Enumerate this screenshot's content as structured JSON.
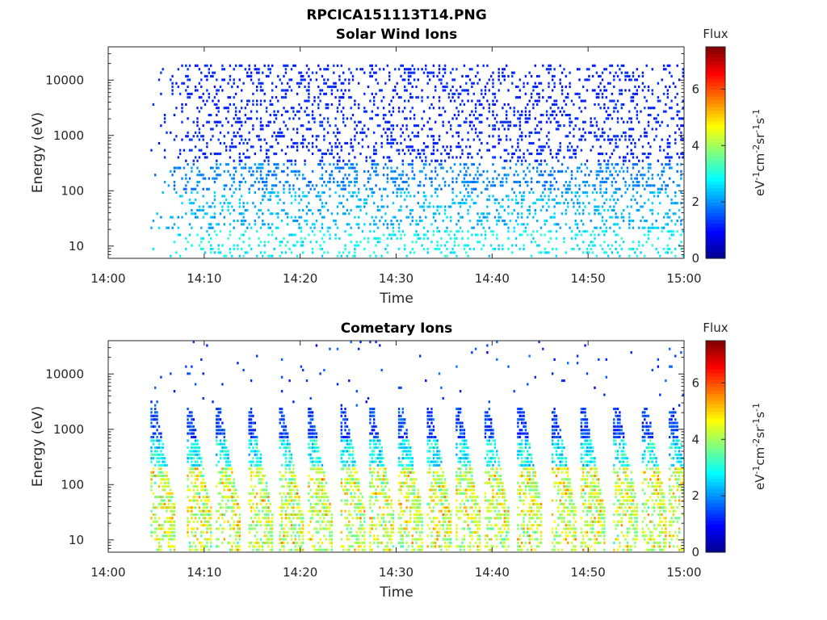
{
  "figure_title": "RPCICA151113T14.PNG",
  "colormap": [
    "#00008f",
    "#0000ff",
    "#0080ff",
    "#00ffff",
    "#80ff80",
    "#ffff00",
    "#ff8000",
    "#ff0000",
    "#800000"
  ],
  "chart_data": [
    {
      "type": "heatmap",
      "title": "Solar Wind Ions",
      "xlabel": "Time",
      "ylabel": "Energy (eV)",
      "x_ticks": [
        "14:00",
        "14:10",
        "14:20",
        "14:30",
        "14:40",
        "14:50",
        "15:00"
      ],
      "x_range_minutes": [
        0,
        60
      ],
      "y_ticks": [
        10,
        100,
        1000,
        10000
      ],
      "y_tick_labels": [
        "10",
        "100",
        "1000",
        "10000"
      ],
      "ylim": [
        6,
        40000
      ],
      "y_scale": "log",
      "colorbar": {
        "title": "Flux",
        "label": "eV-1cm-2sr-1s-1",
        "ticks": [
          0,
          2,
          4,
          6
        ],
        "range": [
          0,
          7.5
        ]
      },
      "description": "Sparse blue/cyan ion counts from ~14:04 to 15:00; flux ~1.2 at 1000-20000 eV, ~2.2 near 100 eV, ~2.7 near 10 eV.",
      "bands": [
        {
          "e_min": 300,
          "e_max": 20000,
          "flux": 1.2,
          "density": 0.22
        },
        {
          "e_min": 100,
          "e_max": 300,
          "flux": 1.9,
          "density": 0.3
        },
        {
          "e_min": 20,
          "e_max": 100,
          "flux": 2.3,
          "density": 0.25
        },
        {
          "e_min": 6,
          "e_max": 20,
          "flux": 2.8,
          "density": 0.2
        }
      ],
      "start_minute": 4
    },
    {
      "type": "heatmap",
      "title": "Cometary Ions",
      "xlabel": "Time",
      "ylabel": "Energy (eV)",
      "x_ticks": [
        "14:00",
        "14:10",
        "14:20",
        "14:30",
        "14:40",
        "14:50",
        "15:00"
      ],
      "x_range_minutes": [
        0,
        60
      ],
      "y_ticks": [
        10,
        100,
        1000,
        10000
      ],
      "y_tick_labels": [
        "10",
        "100",
        "1000",
        "10000"
      ],
      "ylim": [
        6,
        40000
      ],
      "y_scale": "log",
      "colorbar": {
        "title": "Flux",
        "label": "eV-1cm-2sr-1s-1",
        "ticks": [
          0,
          2,
          4,
          6
        ],
        "range": [
          0,
          7.5
        ]
      },
      "description": "Periodic dispersed ion bursts roughly every 3 minutes from ~14:04 to 15:00, strongest (flux ~4-5) at 20-200 eV.",
      "burst_minutes": [
        4.8,
        8.5,
        11.5,
        14.8,
        18,
        21,
        24.5,
        27.5,
        30.5,
        33.5,
        36.5,
        39.5,
        43,
        46.5,
        49.5,
        53,
        56,
        58.8
      ],
      "start_minute": 4
    }
  ]
}
